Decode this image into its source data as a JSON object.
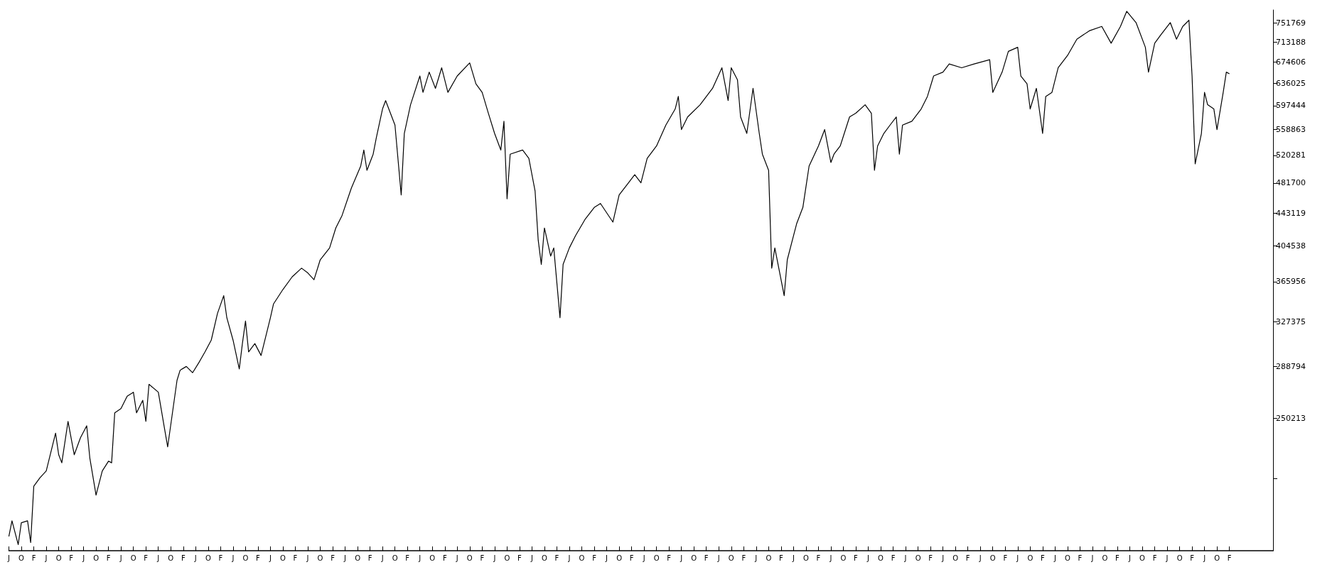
{
  "chart_data": {
    "type": "line",
    "log": "y",
    "color": "#000000",
    "categories": [
      "J",
      null,
      null,
      null,
      "O",
      null,
      null,
      null,
      "F",
      null,
      null,
      null,
      "J",
      null,
      null,
      null,
      "O",
      null,
      null,
      null,
      "F",
      null,
      null,
      null,
      "J",
      null,
      null,
      null,
      "O",
      null,
      null,
      null,
      "F",
      null,
      null,
      null,
      "J",
      null,
      null,
      null,
      "O",
      null,
      null,
      null,
      "F",
      null,
      null,
      null,
      "J",
      null,
      null,
      null,
      "O",
      null,
      null,
      null,
      "F",
      null,
      null,
      null,
      "J",
      null,
      null,
      null,
      "O",
      null,
      null,
      null,
      "F",
      null,
      null,
      null,
      "J",
      null,
      null,
      null,
      "O",
      null,
      null,
      null,
      "F",
      null,
      null,
      null,
      "J",
      null,
      null,
      null,
      "O",
      null,
      null,
      null,
      "F",
      null,
      null,
      null,
      "J",
      null,
      null,
      null,
      "O",
      null,
      null,
      null,
      "F",
      null,
      null,
      null,
      "J",
      null,
      null,
      null,
      "O",
      null,
      null,
      null,
      "F",
      null,
      null,
      null,
      "J",
      null,
      null,
      null,
      "O",
      null,
      null,
      null,
      "F",
      null,
      null,
      null,
      "J",
      null,
      null,
      null,
      "O",
      null,
      null,
      null,
      "F",
      null,
      null,
      null,
      "J",
      null,
      null,
      null,
      "O",
      null,
      null,
      null,
      "F",
      null,
      null,
      null,
      "J",
      null,
      null,
      null,
      "O",
      null,
      null,
      null,
      "F",
      null,
      null,
      null,
      "J",
      null,
      null,
      null,
      "O",
      null,
      null,
      null,
      "F",
      null,
      null,
      null,
      "J",
      null,
      null,
      null,
      "O",
      null,
      null,
      null,
      "F",
      null,
      null,
      null,
      "J",
      null,
      null,
      null,
      "O",
      null,
      null,
      null,
      "F",
      null,
      null,
      null,
      "J",
      null,
      null,
      null,
      "O",
      null,
      null,
      null,
      "F",
      null,
      null,
      null,
      "J",
      null,
      null,
      null,
      "O",
      null,
      null,
      null,
      "F",
      null,
      null,
      null,
      "J",
      null,
      null,
      null,
      "O",
      null,
      null,
      null,
      "F",
      null,
      null,
      null,
      "J",
      null,
      null,
      null,
      "O",
      null,
      null,
      null,
      "F",
      null,
      null,
      null,
      "J",
      null,
      null,
      null,
      "O",
      null,
      null,
      null,
      "F",
      null,
      null,
      null,
      "J",
      null,
      null,
      null,
      "O",
      null,
      null,
      null,
      "F",
      null,
      null,
      null,
      "J",
      null,
      null,
      null,
      "O",
      null,
      null,
      null,
      "F",
      null,
      null,
      null,
      "J",
      null,
      null,
      null,
      "O",
      null,
      null,
      null,
      "F",
      null,
      null,
      null,
      "J",
      null,
      null,
      null,
      "O",
      null,
      null,
      null,
      "F",
      null,
      null,
      null,
      "J",
      null,
      null,
      null,
      "O",
      null,
      null,
      null,
      "F",
      null,
      null,
      null,
      "J",
      null,
      null,
      null,
      "O",
      null,
      null,
      null,
      "F",
      null,
      null,
      null,
      "J",
      null,
      null,
      null,
      "O",
      null,
      null,
      null,
      "F",
      null,
      null,
      null,
      "J",
      null,
      null,
      null,
      "O",
      null,
      null,
      null,
      "F",
      null,
      null,
      null,
      "J",
      null,
      null,
      null,
      "O",
      null,
      null,
      null,
      "F",
      null,
      null,
      null,
      "J",
      null,
      null,
      null,
      "O",
      null,
      null,
      null,
      "F",
      null,
      null,
      null,
      "J",
      null,
      null,
      null,
      "O",
      null,
      null,
      null,
      "F",
      null,
      null,
      null,
      null,
      null,
      null,
      null,
      null,
      null,
      null,
      null,
      null,
      null,
      null
    ],
    "values": [
      180000,
      188000,
      null,
      176000,
      187000,
      null,
      188000,
      177000,
      207000,
      null,
      212000,
      null,
      216000,
      null,
      null,
      240000,
      226000,
      221000,
      null,
      248000,
      null,
      226000,
      null,
      237000,
      null,
      245000,
      224000,
      null,
      202000,
      null,
      216000,
      null,
      222000,
      221000,
      254000,
      null,
      257000,
      null,
      266000,
      null,
      269000,
      254000,
      null,
      263000,
      248000,
      275000,
      null,
      null,
      269000,
      null,
      243000,
      231000,
      null,
      null,
      278000,
      286000,
      null,
      289000,
      null,
      284000,
      null,
      292000,
      null,
      301000,
      null,
      311000,
      null,
      335000,
      null,
      352000,
      331000,
      null,
      311000,
      null,
      287000,
      308000,
      328000,
      301000,
      null,
      308000,
      null,
      298000,
      null,
      null,
      331000,
      344000,
      null,
      null,
      358000,
      null,
      null,
      371000,
      null,
      null,
      380000,
      null,
      375000,
      null,
      368000,
      null,
      389000,
      null,
      null,
      402000,
      null,
      425000,
      null,
      440000,
      null,
      null,
      475000,
      null,
      null,
      505000,
      528000,
      499000,
      null,
      522000,
      546000,
      null,
      592000,
      606000,
      null,
      null,
      566000,
      null,
      466000,
      553000,
      null,
      599000,
      null,
      null,
      649000,
      620000,
      null,
      656000,
      null,
      627000,
      null,
      664000,
      null,
      620000,
      null,
      null,
      649000,
      null,
      null,
      null,
      673000,
      null,
      635000,
      null,
      620000,
      null,
      585000,
      null,
      553000,
      null,
      528000,
      572000,
      461000,
      522000,
      null,
      null,
      null,
      528000,
      null,
      516000,
      null,
      471000,
      411000,
      384000,
      425000,
      null,
      393000,
      402000,
      null,
      331000,
      384000,
      null,
      402000,
      null,
      416000,
      null,
      null,
      435000,
      null,
      null,
      450000,
      null,
      455000,
      null,
      null,
      null,
      432000,
      null,
      466000,
      null,
      null,
      482000,
      null,
      493000,
      null,
      482000,
      null,
      516000,
      null,
      null,
      534000,
      null,
      null,
      566000,
      null,
      null,
      592000,
      613000,
      559000,
      null,
      579000,
      null,
      null,
      null,
      599000,
      null,
      null,
      null,
      627000,
      null,
      null,
      664000,
      null,
      606000,
      664000,
      null,
      642000,
      579000,
      null,
      553000,
      null,
      627000,
      null,
      553000,
      522000,
      null,
      499000,
      380000,
      402000,
      null,
      null,
      352000,
      389000,
      null,
      416000,
      430000,
      null,
      450000,
      null,
      505000,
      null,
      null,
      534000,
      null,
      559000,
      null,
      510000,
      522000,
      null,
      534000,
      null,
      null,
      579000,
      null,
      585000,
      null,
      null,
      599000,
      null,
      585000,
      499000,
      534000,
      null,
      553000,
      null,
      566000,
      null,
      579000,
      522000,
      566000,
      null,
      null,
      572000,
      null,
      null,
      592000,
      null,
      613000,
      null,
      649000,
      null,
      null,
      656000,
      null,
      671000,
      null,
      null,
      null,
      664000,
      null,
      null,
      null,
      671000,
      null,
      null,
      null,
      null,
      679000,
      620000,
      null,
      null,
      656000,
      null,
      695000,
      null,
      null,
      703000,
      649000,
      null,
      635000,
      592000,
      null,
      627000,
      null,
      553000,
      613000,
      null,
      620000,
      null,
      664000,
      null,
      null,
      687000,
      null,
      null,
      719000,
      null,
      null,
      null,
      736000,
      null,
      null,
      null,
      745000,
      null,
      null,
      711000,
      null,
      null,
      745000,
      null,
      777000,
      null,
      null,
      753000,
      null,
      null,
      703000,
      656000,
      null,
      711000,
      null,
      728000,
      null,
      null,
      753000,
      null,
      719000,
      null,
      745000,
      null,
      758000,
      649000,
      508000,
      null,
      553000,
      620000,
      599000,
      null,
      592000,
      559000,
      null,
      620000,
      656000,
      653000,
      null,
      null,
      null,
      null,
      null,
      null,
      null,
      null,
      null,
      null,
      null,
      null,
      null,
      null
    ],
    "ylim": [
      173000,
      780000
    ],
    "yticks": [
      {
        "value": 211632,
        "label": null
      },
      250213,
      288794,
      327375,
      365956,
      404538,
      443119,
      481700,
      520281,
      558863,
      597444,
      636025,
      674606,
      713188,
      751769
    ]
  }
}
